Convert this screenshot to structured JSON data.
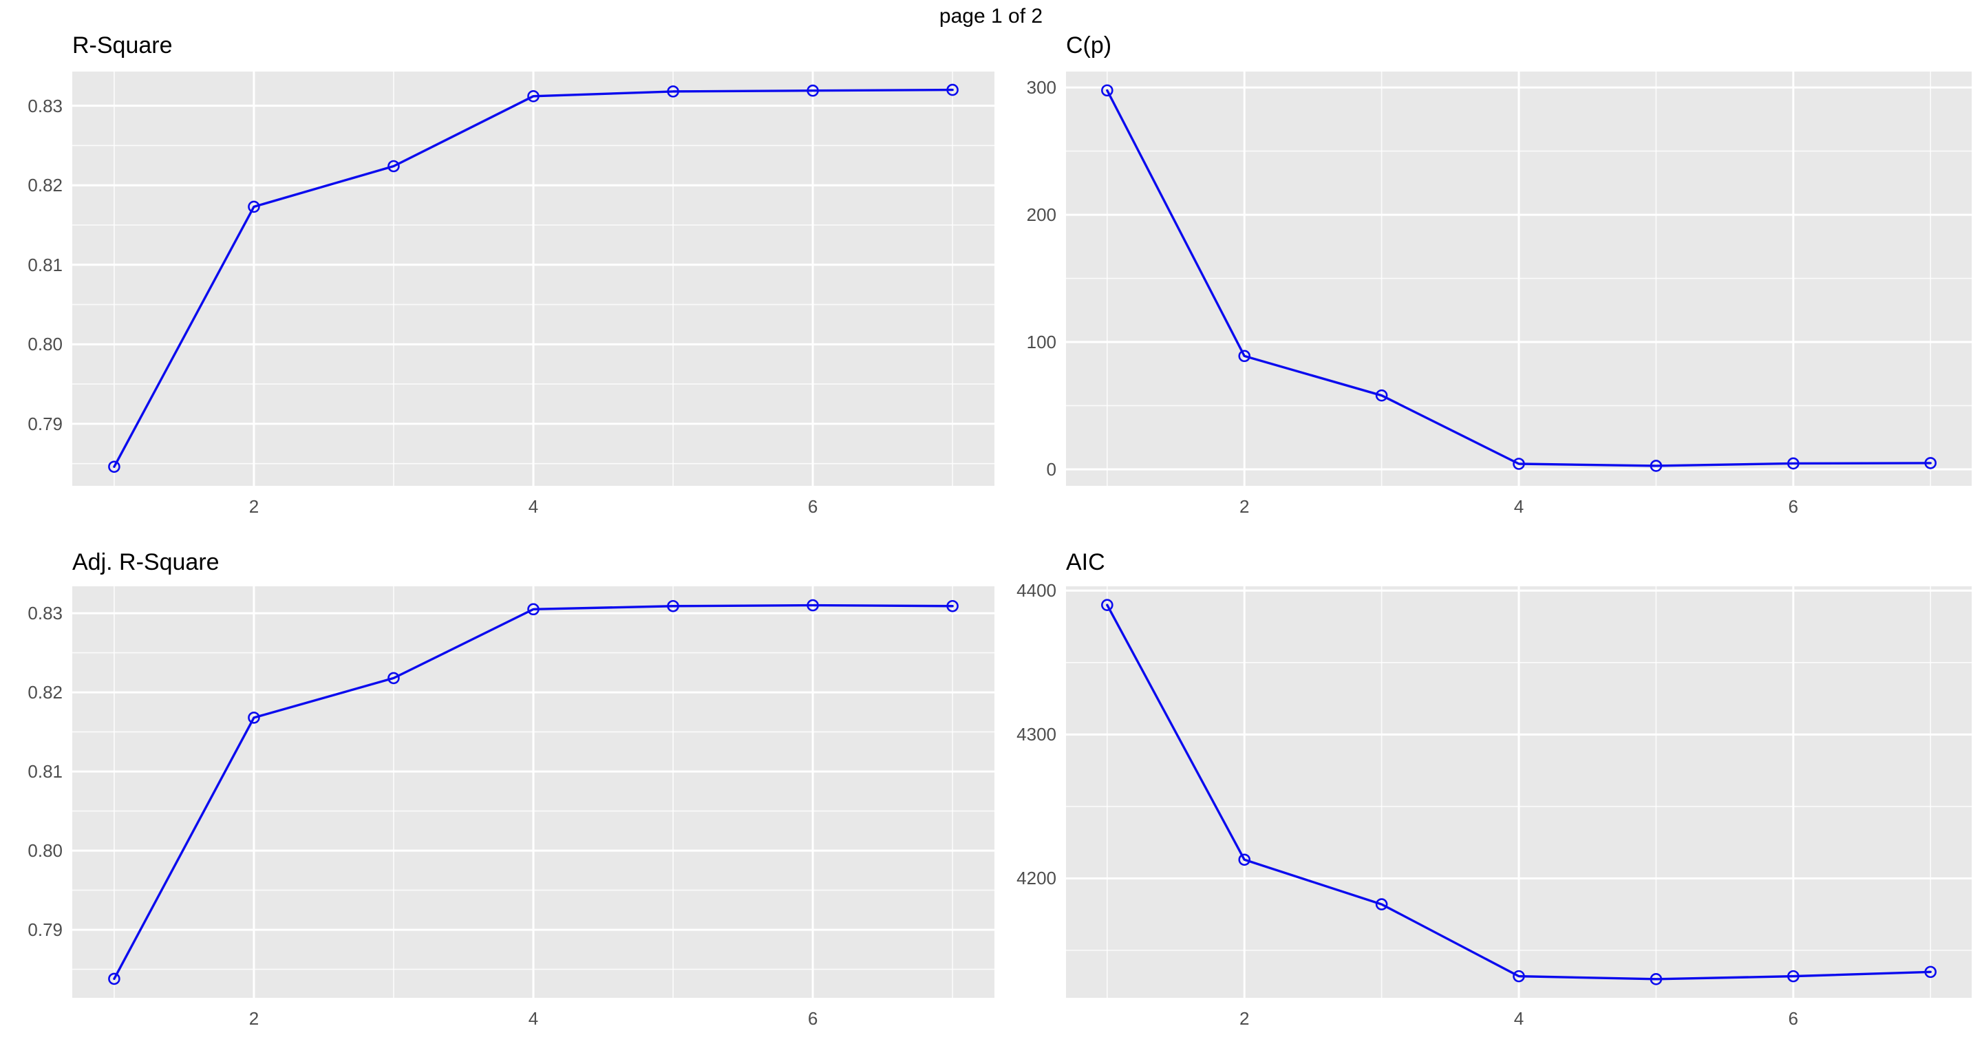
{
  "page": {
    "title": "page 1 of 2"
  },
  "colors": {
    "series_line": "#0B0BEE",
    "marker_stroke": "#0B0BEE",
    "panel_background": "#E8E8E8",
    "grid_major": "#FFFFFF",
    "grid_minor": "#FFFFFF",
    "tick_label": "#4D4D4D",
    "title_text": "#000000"
  },
  "chart_data": [
    {
      "type": "line",
      "title": "R-Square",
      "xlabel": "",
      "ylabel": "",
      "x": [
        1,
        2,
        3,
        4,
        5,
        6,
        7
      ],
      "y": [
        0.7846,
        0.8173,
        0.8224,
        0.8312,
        0.8318,
        0.8319,
        0.832
      ],
      "xlim": [
        0.7,
        7.3
      ],
      "ylim": [
        0.7822,
        0.8343
      ],
      "x_ticks": [
        2,
        4,
        6
      ],
      "x_tick_labels": [
        "2",
        "4",
        "6"
      ],
      "x_minor": [
        1,
        3,
        5,
        7
      ],
      "y_ticks": [
        0.79,
        0.8,
        0.81,
        0.82,
        0.83
      ],
      "y_tick_labels": [
        "0.79",
        "0.80",
        "0.81",
        "0.82",
        "0.83"
      ],
      "y_minor": [
        0.785,
        0.795,
        0.805,
        0.815,
        0.825
      ],
      "grid": "on",
      "legend": "none"
    },
    {
      "type": "line",
      "title": "C(p)",
      "xlabel": "",
      "ylabel": "",
      "x": [
        1,
        2,
        3,
        4,
        5,
        6,
        7
      ],
      "y": [
        297.7,
        89.0,
        58.0,
        4.3,
        2.7,
        4.6,
        4.9
      ],
      "xlim": [
        0.7,
        7.3
      ],
      "ylim": [
        -13,
        312.5
      ],
      "x_ticks": [
        2,
        4,
        6
      ],
      "x_tick_labels": [
        "2",
        "4",
        "6"
      ],
      "x_minor": [
        1,
        3,
        5,
        7
      ],
      "y_ticks": [
        0,
        100,
        200,
        300
      ],
      "y_tick_labels": [
        "0",
        "100",
        "200",
        "300"
      ],
      "y_minor": [
        50,
        150,
        250
      ],
      "grid": "on",
      "legend": "none"
    },
    {
      "type": "line",
      "title": "Adj. R-Square",
      "xlabel": "",
      "ylabel": "",
      "x": [
        1,
        2,
        3,
        4,
        5,
        6,
        7
      ],
      "y": [
        0.7838,
        0.8168,
        0.8218,
        0.8305,
        0.8309,
        0.831,
        0.8309
      ],
      "xlim": [
        0.7,
        7.3
      ],
      "ylim": [
        0.7814,
        0.8334
      ],
      "x_ticks": [
        2,
        4,
        6
      ],
      "x_tick_labels": [
        "2",
        "4",
        "6"
      ],
      "x_minor": [
        1,
        3,
        5,
        7
      ],
      "y_ticks": [
        0.79,
        0.8,
        0.81,
        0.82,
        0.83
      ],
      "y_tick_labels": [
        "0.79",
        "0.80",
        "0.81",
        "0.82",
        "0.83"
      ],
      "y_minor": [
        0.785,
        0.795,
        0.805,
        0.815,
        0.825
      ],
      "grid": "on",
      "legend": "none"
    },
    {
      "type": "line",
      "title": "AIC",
      "xlabel": "",
      "ylabel": "",
      "x": [
        1,
        2,
        3,
        4,
        5,
        6,
        7
      ],
      "y": [
        4390,
        4213,
        4182,
        4132,
        4130,
        4132,
        4135
      ],
      "xlim": [
        0.7,
        7.3
      ],
      "ylim": [
        4117,
        4403
      ],
      "x_ticks": [
        2,
        4,
        6
      ],
      "x_tick_labels": [
        "2",
        "4",
        "6"
      ],
      "x_minor": [
        1,
        3,
        5,
        7
      ],
      "y_ticks": [
        4200,
        4300,
        4400
      ],
      "y_tick_labels": [
        "4200",
        "4300",
        "4400"
      ],
      "y_minor": [
        4150,
        4250,
        4350
      ],
      "grid": "on",
      "legend": "none"
    }
  ]
}
